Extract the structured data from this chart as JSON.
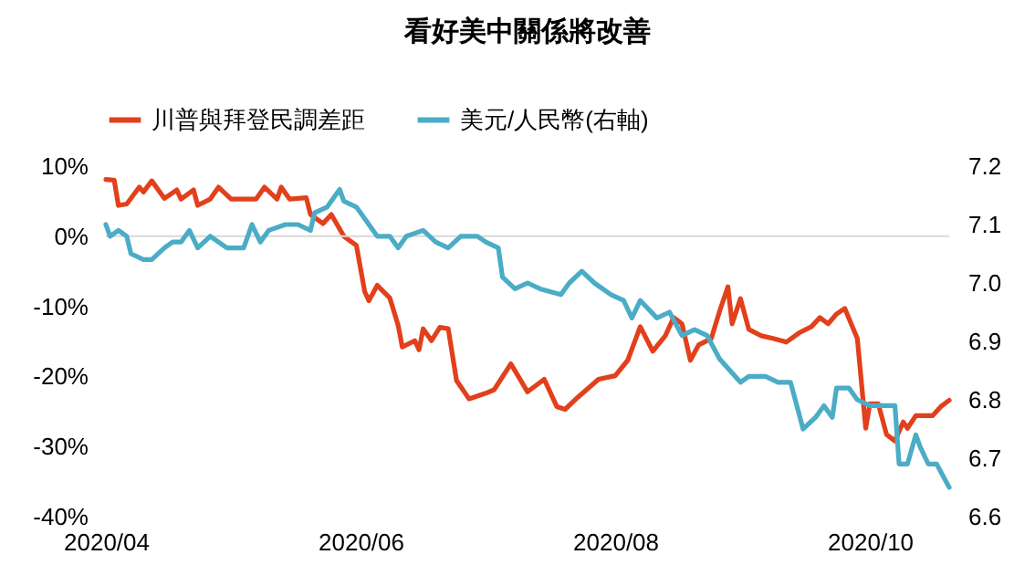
{
  "chart_data": {
    "type": "line",
    "title": "看好美中關係將改善",
    "legend": "top",
    "xlim": [
      "2020-04-01",
      "2020-10-20"
    ],
    "xticks": [
      {
        "value": "2020-04-01",
        "label": "2020/04"
      },
      {
        "value": "2020-06-01",
        "label": "2020/06"
      },
      {
        "value": "2020-08-01",
        "label": "2020/08"
      },
      {
        "value": "2020-10-01",
        "label": "2020/10"
      }
    ],
    "ylim": [
      -40,
      10
    ],
    "yticks": [
      {
        "value": 10,
        "label": "10%"
      },
      {
        "value": 0,
        "label": "0%"
      },
      {
        "value": -10,
        "label": "-10%"
      },
      {
        "value": -20,
        "label": "-20%"
      },
      {
        "value": -30,
        "label": "-30%"
      },
      {
        "value": -40,
        "label": "-40%"
      }
    ],
    "y2lim": [
      6.6,
      7.2
    ],
    "y2ticks": [
      {
        "value": 7.2,
        "label": "7.2"
      },
      {
        "value": 7.1,
        "label": "7.1"
      },
      {
        "value": 7,
        "label": "7.0"
      },
      {
        "value": 6.9,
        "label": "6.9"
      },
      {
        "value": 6.8,
        "label": "6.8"
      },
      {
        "value": 6.7,
        "label": "6.7"
      },
      {
        "value": 6.6,
        "label": "6.6"
      }
    ],
    "ref_lines": [
      {
        "axis": "y",
        "value": 0,
        "color": "#d9d9d9"
      }
    ],
    "line_style": "solid",
    "marker": "none",
    "series": [
      {
        "name": "川普與拜登民調差距",
        "color": "#e2401c",
        "x": [
          "2020-04-01",
          "2020-04-03",
          "2020-04-04",
          "2020-04-06",
          "2020-04-09",
          "2020-04-10",
          "2020-04-12",
          "2020-04-15",
          "2020-04-18",
          "2020-04-19",
          "2020-04-22",
          "2020-04-23",
          "2020-04-26",
          "2020-04-28",
          "2020-05-01",
          "2020-05-07",
          "2020-05-09",
          "2020-05-12",
          "2020-05-13",
          "2020-05-15",
          "2020-05-19",
          "2020-05-20",
          "2020-05-23",
          "2020-05-25",
          "2020-05-28",
          "2020-05-31",
          "2020-06-02",
          "2020-06-03",
          "2020-06-05",
          "2020-06-08",
          "2020-06-10",
          "2020-06-11",
          "2020-06-14",
          "2020-06-15",
          "2020-06-16",
          "2020-06-18",
          "2020-06-20",
          "2020-06-22",
          "2020-06-24",
          "2020-06-27",
          "2020-07-01",
          "2020-07-03",
          "2020-07-07",
          "2020-07-09",
          "2020-07-11",
          "2020-07-15",
          "2020-07-18",
          "2020-07-20",
          "2020-07-23",
          "2020-07-28",
          "2020-08-01",
          "2020-08-04",
          "2020-08-07",
          "2020-08-10",
          "2020-08-13",
          "2020-08-15",
          "2020-08-17",
          "2020-08-19",
          "2020-08-21",
          "2020-08-24",
          "2020-08-26",
          "2020-08-28",
          "2020-08-29",
          "2020-08-31",
          "2020-09-02",
          "2020-09-05",
          "2020-09-08",
          "2020-09-11",
          "2020-09-14",
          "2020-09-17",
          "2020-09-19",
          "2020-09-21",
          "2020-09-23",
          "2020-09-25",
          "2020-09-28",
          "2020-09-30",
          "2020-10-01",
          "2020-10-03",
          "2020-10-05",
          "2020-10-07",
          "2020-10-09",
          "2020-10-10",
          "2020-10-12",
          "2020-10-16",
          "2020-10-18",
          "2020-10-20"
        ],
        "values": [
          8.1,
          8.0,
          4.4,
          4.6,
          7.0,
          6.3,
          7.9,
          5.4,
          6.6,
          5.3,
          6.6,
          4.4,
          5.3,
          7.0,
          5.3,
          5.3,
          7.0,
          5.3,
          7.0,
          5.3,
          5.5,
          3.1,
          1.8,
          3.1,
          0,
          -1.3,
          -7.9,
          -9.2,
          -7.0,
          -8.8,
          -12.7,
          -15.8,
          -14.9,
          -16.2,
          -13.2,
          -14.9,
          -13.0,
          -13.2,
          -20.6,
          -23.2,
          -22.4,
          -21.9,
          -18.2,
          -20.2,
          -22.2,
          -20.4,
          -24.3,
          -24.7,
          -23.0,
          -20.4,
          -19.9,
          -17.7,
          -12.9,
          -16.4,
          -14.2,
          -11.6,
          -12.5,
          -17.7,
          -15.5,
          -14.6,
          -10.7,
          -7.2,
          -12.5,
          -8.9,
          -13.3,
          -14.2,
          -14.6,
          -15.1,
          -13.8,
          -12.9,
          -11.6,
          -12.5,
          -11.1,
          -10.3,
          -14.6,
          -27.4,
          -23.9,
          -23.9,
          -28.3,
          -29.2,
          -26.5,
          -27.4,
          -25.6,
          -25.6,
          -24.3,
          -23.4
        ]
      },
      {
        "name": "美元/人民幣(右軸)",
        "color": "#4bacc6",
        "axis": "y2",
        "x": [
          "2020-04-01",
          "2020-04-02",
          "2020-04-04",
          "2020-04-06",
          "2020-04-07",
          "2020-04-10",
          "2020-04-12",
          "2020-04-15",
          "2020-04-17",
          "2020-04-19",
          "2020-04-21",
          "2020-04-23",
          "2020-04-26",
          "2020-04-30",
          "2020-05-04",
          "2020-05-06",
          "2020-05-08",
          "2020-05-10",
          "2020-05-14",
          "2020-05-17",
          "2020-05-20",
          "2020-05-21",
          "2020-05-24",
          "2020-05-27",
          "2020-05-28",
          "2020-05-31",
          "2020-06-03",
          "2020-06-05",
          "2020-06-08",
          "2020-06-10",
          "2020-06-12",
          "2020-06-16",
          "2020-06-19",
          "2020-06-22",
          "2020-06-25",
          "2020-06-29",
          "2020-07-01",
          "2020-07-04",
          "2020-07-05",
          "2020-07-08",
          "2020-07-11",
          "2020-07-14",
          "2020-07-19",
          "2020-07-21",
          "2020-07-24",
          "2020-07-27",
          "2020-07-31",
          "2020-08-03",
          "2020-08-05",
          "2020-08-07",
          "2020-08-11",
          "2020-08-14",
          "2020-08-17",
          "2020-08-20",
          "2020-08-23",
          "2020-08-26",
          "2020-08-31",
          "2020-09-02",
          "2020-09-06",
          "2020-09-09",
          "2020-09-12",
          "2020-09-15",
          "2020-09-18",
          "2020-09-20",
          "2020-09-22",
          "2020-09-23",
          "2020-09-26",
          "2020-09-28",
          "2020-10-01",
          "2020-10-07",
          "2020-10-08",
          "2020-10-10",
          "2020-10-12",
          "2020-10-13",
          "2020-10-15",
          "2020-10-17",
          "2020-10-20"
        ],
        "values": [
          7.1,
          7.08,
          7.09,
          7.08,
          7.05,
          7.04,
          7.04,
          7.06,
          7.07,
          7.07,
          7.09,
          7.06,
          7.08,
          7.06,
          7.06,
          7.1,
          7.07,
          7.09,
          7.1,
          7.1,
          7.09,
          7.12,
          7.13,
          7.16,
          7.14,
          7.13,
          7.1,
          7.08,
          7.08,
          7.06,
          7.08,
          7.09,
          7.07,
          7.06,
          7.08,
          7.08,
          7.07,
          7.06,
          7.01,
          6.99,
          7.0,
          6.99,
          6.98,
          7.0,
          7.02,
          7.0,
          6.98,
          6.97,
          6.94,
          6.97,
          6.94,
          6.95,
          6.91,
          6.92,
          6.91,
          6.87,
          6.83,
          6.84,
          6.84,
          6.83,
          6.83,
          6.75,
          6.77,
          6.79,
          6.77,
          6.82,
          6.82,
          6.8,
          6.79,
          6.79,
          6.69,
          6.69,
          6.74,
          6.72,
          6.69,
          6.69,
          6.65
        ]
      }
    ]
  }
}
